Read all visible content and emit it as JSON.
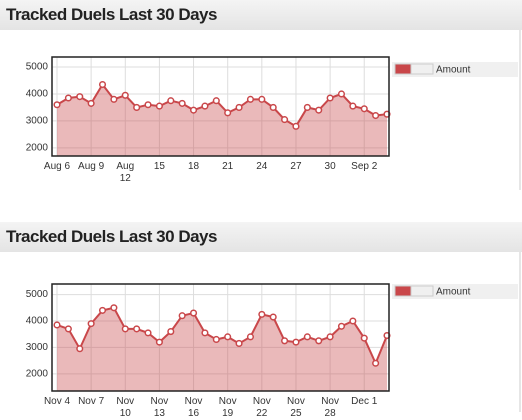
{
  "chart_data": [
    {
      "type": "area",
      "title": "Tracked Duels Last 30 Days",
      "categories": [
        "Aug 6",
        null,
        null,
        "Aug 9",
        null,
        null,
        "Aug 12",
        null,
        null,
        "15",
        null,
        null,
        "18",
        null,
        null,
        "21",
        null,
        null,
        "24",
        null,
        null,
        "27",
        null,
        null,
        "30",
        null,
        null,
        "Sep 2",
        null,
        null
      ],
      "series": [
        {
          "name": "Amount",
          "color": "#c9474a",
          "values": [
            3600,
            3850,
            3900,
            3650,
            4350,
            3800,
            3950,
            3500,
            3600,
            3550,
            3750,
            3650,
            3400,
            3550,
            3750,
            3300,
            3500,
            3800,
            3800,
            3500,
            3050,
            2800,
            3500,
            3400,
            3850,
            4000,
            3550,
            3450,
            3200,
            3250
          ]
        }
      ],
      "ylim": [
        1700,
        5370
      ],
      "yticks": [
        2000,
        3000,
        4000,
        5000
      ],
      "grid": true
    },
    {
      "type": "area",
      "title": "Tracked Duels Last 30 Days",
      "categories": [
        "Nov 4",
        null,
        null,
        "Nov 7",
        null,
        null,
        "Nov 10",
        null,
        null,
        "Nov 13",
        null,
        null,
        "Nov 16",
        null,
        null,
        "Nov 19",
        null,
        null,
        "Nov 22",
        null,
        null,
        "Nov 25",
        null,
        null,
        "Nov 28",
        null,
        null,
        "Dec 1",
        null,
        null
      ],
      "series": [
        {
          "name": "Amount",
          "color": "#c9474a",
          "values": [
            3850,
            3700,
            2950,
            3900,
            4400,
            4500,
            3700,
            3700,
            3550,
            3200,
            3600,
            4200,
            4300,
            3550,
            3300,
            3400,
            3150,
            3400,
            4250,
            4150,
            3250,
            3200,
            3400,
            3250,
            3400,
            3800,
            4000,
            3350,
            2400,
            3450
          ]
        }
      ],
      "ylim": [
        1350,
        5400
      ],
      "yticks": [
        2000,
        3000,
        4000,
        5000
      ],
      "grid": true
    }
  ]
}
